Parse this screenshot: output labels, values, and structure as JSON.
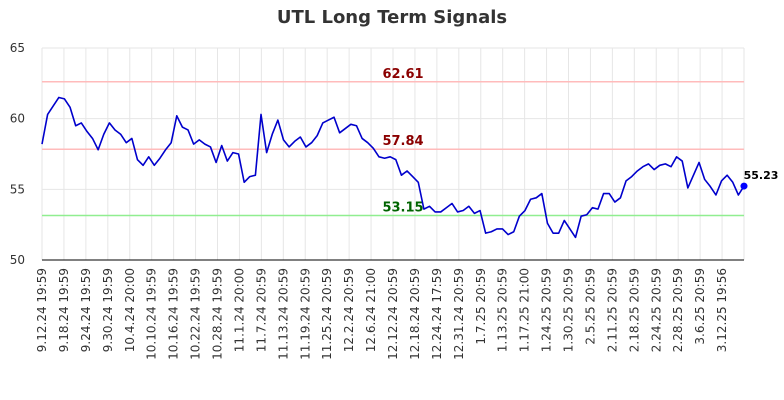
{
  "chart_data": {
    "type": "line",
    "title": "UTL Long Term Signals",
    "xlabel": "",
    "ylabel": "",
    "ylim": [
      50,
      65
    ],
    "y_ticks": [
      50,
      55,
      60,
      65
    ],
    "grid": true,
    "colors": {
      "line": "#0000cc",
      "last_point": "#0000ff",
      "resistance_line": "#ffbbbb",
      "support_line": "#90ee90",
      "resistance_label": "#8b0000",
      "support_label": "#006400",
      "grid": "#e6e6e6",
      "axis": "#000000"
    },
    "x_tick_labels": [
      "9.12.24 19:59",
      "9.18.24 19:59",
      "9.24.24 19:59",
      "9.30.24 19:59",
      "10.4.24 20:00",
      "10.10.24 19:59",
      "10.16.24 19:59",
      "10.22.24 19:59",
      "10.28.24 19:59",
      "11.1.24 20:00",
      "11.7.24 20:59",
      "11.13.24 20:59",
      "11.19.24 20:59",
      "11.25.24 20:59",
      "12.2.24 20:59",
      "12.6.24 21:00",
      "12.12.24 20:59",
      "12.18.24 20:59",
      "12.24.24 17:59",
      "12.31.24 20:59",
      "1.7.25 20:59",
      "1.13.25 20:59",
      "1.17.25 21:00",
      "1.24.25 20:59",
      "1.30.25 20:59",
      "2.5.25 20:59",
      "2.11.25 20:59",
      "2.18.25 20:59",
      "2.24.25 20:59",
      "2.28.25 20:59",
      "3.6.25 20:59",
      "3.12.25 19:56"
    ],
    "levels": [
      {
        "value": 62.61,
        "label": "62.61",
        "kind": "resistance"
      },
      {
        "value": 57.84,
        "label": "57.84",
        "kind": "resistance"
      },
      {
        "value": 53.15,
        "label": "53.15",
        "kind": "support"
      }
    ],
    "last_value_label": "55.23",
    "series": [
      {
        "values": [
          58.2,
          60.3,
          60.9,
          61.5,
          61.4,
          60.8,
          59.5,
          59.7,
          59.1,
          58.6,
          57.8,
          58.9,
          59.7,
          59.2,
          58.9,
          58.3,
          58.6,
          57.1,
          56.7,
          57.3,
          56.7,
          57.2,
          57.8,
          58.3,
          60.2,
          59.4,
          59.2,
          58.2,
          58.5,
          58.2,
          58.0,
          56.9,
          58.1,
          57.0,
          57.6,
          57.5,
          55.5,
          55.9,
          56.0,
          60.3,
          57.6,
          58.9,
          59.9,
          58.5,
          58.0,
          58.4,
          58.7,
          58.0,
          58.3,
          58.8,
          59.7,
          59.9,
          60.1,
          59.0,
          59.3,
          59.6,
          59.5,
          58.6,
          58.3,
          57.9,
          57.3,
          57.2,
          57.3,
          57.1,
          56.0,
          56.3,
          55.9,
          55.5,
          53.6,
          53.8,
          53.4,
          53.4,
          53.7,
          54.0,
          53.4,
          53.5,
          53.8,
          53.3,
          53.5,
          51.9,
          52.0,
          52.2,
          52.2,
          51.8,
          52.0,
          53.1,
          53.5,
          54.3,
          54.4,
          54.7,
          52.6,
          51.9,
          51.9,
          52.8,
          52.2,
          51.6,
          53.1,
          53.2,
          53.7,
          53.6,
          54.7,
          54.7,
          54.1,
          54.4,
          55.6,
          55.9,
          56.3,
          56.6,
          56.8,
          56.4,
          56.7,
          56.8,
          56.6,
          57.3,
          57.0,
          55.1,
          56.0,
          56.9,
          55.7,
          55.2,
          54.6,
          55.6,
          56.0,
          55.5,
          54.6,
          55.23
        ]
      }
    ]
  }
}
